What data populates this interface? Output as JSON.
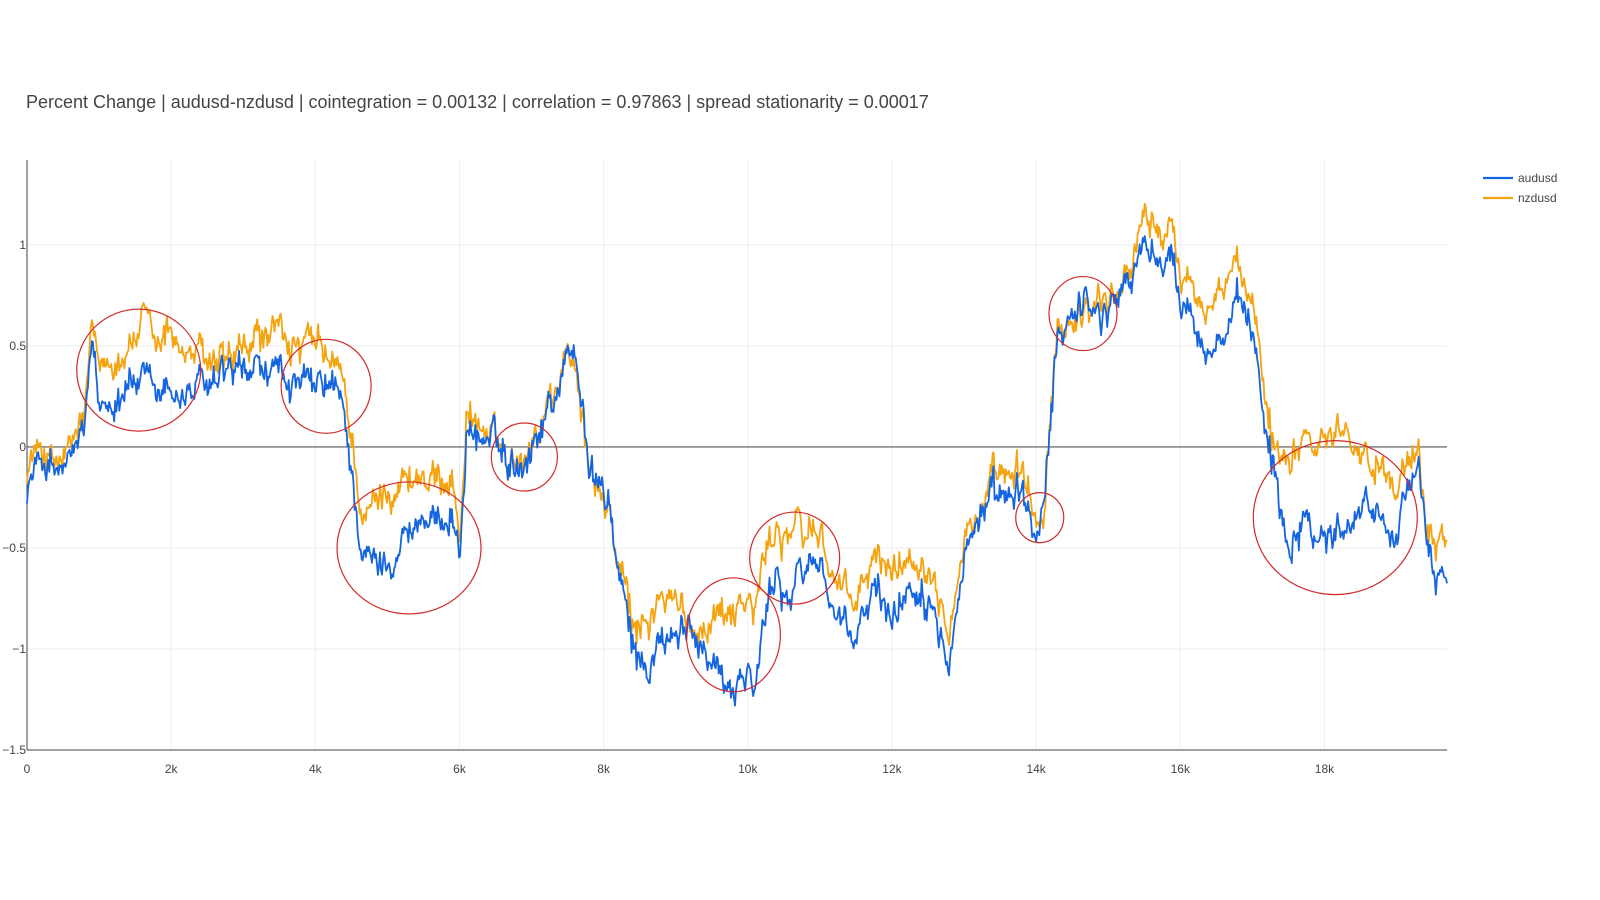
{
  "chart_data": {
    "type": "line",
    "title": "Percent Change | audusd-nzdusd | cointegration = 0.00132 | correlation = 0.97863 | spread stationarity = 0.00017",
    "xlabel": "",
    "ylabel": "",
    "xlim": [
      0,
      19700
    ],
    "ylim": [
      -1.5,
      1.4
    ],
    "grid": true,
    "legend_position": "top-right",
    "x_ticks": [
      {
        "value": 0,
        "label": "0"
      },
      {
        "value": 2000,
        "label": "2k"
      },
      {
        "value": 4000,
        "label": "4k"
      },
      {
        "value": 6000,
        "label": "6k"
      },
      {
        "value": 8000,
        "label": "8k"
      },
      {
        "value": 10000,
        "label": "10k"
      },
      {
        "value": 12000,
        "label": "12k"
      },
      {
        "value": 14000,
        "label": "14k"
      },
      {
        "value": 16000,
        "label": "16k"
      },
      {
        "value": 18000,
        "label": "18k"
      }
    ],
    "y_ticks": [
      {
        "value": 1,
        "label": "1"
      },
      {
        "value": 0.5,
        "label": "0.5"
      },
      {
        "value": 0,
        "label": "0"
      },
      {
        "value": -0.5,
        "label": "−0.5"
      },
      {
        "value": -1,
        "label": "−1"
      },
      {
        "value": -1.5,
        "label": "−1.5"
      }
    ],
    "series": [
      {
        "name": "audusd",
        "color": "#1565e0",
        "x": [
          0,
          200,
          400,
          600,
          800,
          900,
          1000,
          1200,
          1400,
          1600,
          1800,
          2000,
          2200,
          2400,
          2600,
          2800,
          3000,
          3200,
          3400,
          3600,
          3800,
          4000,
          4200,
          4400,
          4500,
          4600,
          4700,
          4900,
          5100,
          5300,
          5500,
          5700,
          5900,
          6000,
          6100,
          6300,
          6500,
          6700,
          6900,
          7100,
          7300,
          7500,
          7600,
          7700,
          7800,
          8000,
          8100,
          8200,
          8300,
          8400,
          8500,
          8600,
          8800,
          9000,
          9200,
          9400,
          9600,
          9800,
          10000,
          10100,
          10200,
          10300,
          10400,
          10600,
          10800,
          11000,
          11200,
          11400,
          11600,
          11800,
          12000,
          12200,
          12400,
          12600,
          12800,
          12900,
          13000,
          13200,
          13400,
          13600,
          13800,
          14000,
          14100,
          14200,
          14300,
          14500,
          14700,
          14900,
          15100,
          15300,
          15500,
          15700,
          15900,
          16100,
          16300,
          16500,
          16700,
          16900,
          17000,
          17100,
          17200,
          17300,
          17500,
          17700,
          17900,
          18100,
          18300,
          18500,
          18700,
          18900,
          19100,
          19300,
          19400,
          19500,
          19700
        ],
        "values": [
          -0.2,
          -0.05,
          -0.15,
          -0.1,
          0.1,
          0.45,
          0.15,
          0.25,
          0.35,
          0.3,
          0.2,
          0.3,
          0.25,
          0.3,
          0.25,
          0.35,
          0.3,
          0.4,
          0.3,
          0.35,
          0.3,
          0.25,
          0.3,
          0.15,
          -0.1,
          -0.4,
          -0.55,
          -0.6,
          -0.5,
          -0.4,
          -0.35,
          -0.4,
          -0.3,
          -0.55,
          0.1,
          0.05,
          0.0,
          -0.05,
          -0.05,
          0.1,
          0.25,
          0.45,
          0.5,
          0.25,
          -0.15,
          -0.2,
          -0.35,
          -0.6,
          -0.85,
          -1.0,
          -1.05,
          -1.1,
          -0.95,
          -1.0,
          -0.9,
          -0.95,
          -1.1,
          -1.15,
          -1.1,
          -1.25,
          -0.95,
          -0.75,
          -0.6,
          -0.75,
          -0.6,
          -0.55,
          -0.8,
          -1.0,
          -0.85,
          -0.7,
          -0.85,
          -0.7,
          -0.65,
          -0.75,
          -0.95,
          -0.75,
          -0.55,
          -0.3,
          -0.3,
          -0.3,
          -0.25,
          -0.45,
          -0.3,
          0.05,
          0.55,
          0.7,
          0.75,
          0.65,
          0.75,
          0.85,
          1.0,
          0.95,
          0.85,
          0.7,
          0.6,
          0.5,
          0.6,
          0.65,
          0.55,
          0.35,
          0.1,
          -0.1,
          -0.45,
          -0.3,
          -0.4,
          -0.45,
          -0.35,
          -0.25,
          -0.3,
          -0.35,
          -0.3,
          -0.2,
          -0.4,
          -0.6,
          -0.6
        ]
      },
      {
        "name": "nzdusd",
        "color": "#f5a30f",
        "x": [
          0,
          200,
          400,
          600,
          800,
          900,
          1000,
          1200,
          1400,
          1600,
          1800,
          2000,
          2200,
          2400,
          2600,
          2800,
          3000,
          3200,
          3400,
          3600,
          3800,
          4000,
          4200,
          4400,
          4500,
          4600,
          4700,
          4900,
          5100,
          5300,
          5500,
          5700,
          5900,
          6000,
          6100,
          6300,
          6500,
          6700,
          6900,
          7100,
          7300,
          7500,
          7600,
          7700,
          7800,
          8000,
          8100,
          8200,
          8300,
          8400,
          8500,
          8600,
          8800,
          9000,
          9200,
          9400,
          9600,
          9800,
          10000,
          10100,
          10200,
          10300,
          10400,
          10600,
          10800,
          11000,
          11200,
          11400,
          11600,
          11800,
          12000,
          12200,
          12400,
          12600,
          12800,
          12900,
          13000,
          13200,
          13400,
          13600,
          13800,
          14000,
          14100,
          14200,
          14300,
          14500,
          14700,
          14900,
          15100,
          15300,
          15500,
          15700,
          15900,
          16100,
          16300,
          16500,
          16700,
          16900,
          17000,
          17100,
          17200,
          17300,
          17500,
          17700,
          17900,
          18100,
          18300,
          18500,
          18700,
          18900,
          19100,
          19300,
          19400,
          19500,
          19700
        ],
        "values": [
          -0.1,
          0.0,
          -0.1,
          -0.05,
          0.15,
          0.55,
          0.35,
          0.45,
          0.5,
          0.6,
          0.45,
          0.6,
          0.45,
          0.45,
          0.35,
          0.4,
          0.4,
          0.55,
          0.5,
          0.55,
          0.45,
          0.5,
          0.4,
          0.3,
          0.05,
          -0.2,
          -0.35,
          -0.25,
          -0.15,
          -0.15,
          -0.15,
          -0.2,
          -0.1,
          -0.5,
          0.2,
          0.1,
          0.0,
          -0.05,
          0.0,
          0.1,
          0.3,
          0.45,
          0.45,
          0.2,
          -0.15,
          -0.25,
          -0.35,
          -0.6,
          -0.75,
          -0.9,
          -0.9,
          -0.85,
          -0.75,
          -0.8,
          -0.9,
          -0.85,
          -0.8,
          -0.75,
          -0.75,
          -0.85,
          -0.6,
          -0.5,
          -0.4,
          -0.4,
          -0.45,
          -0.4,
          -0.65,
          -0.8,
          -0.7,
          -0.55,
          -0.6,
          -0.55,
          -0.5,
          -0.6,
          -0.8,
          -0.65,
          -0.45,
          -0.3,
          -0.2,
          -0.2,
          -0.15,
          -0.35,
          -0.4,
          0.1,
          0.6,
          0.65,
          0.7,
          0.75,
          0.75,
          0.9,
          1.15,
          1.1,
          1.0,
          0.85,
          0.8,
          0.75,
          0.85,
          0.75,
          0.7,
          0.5,
          0.25,
          0.0,
          0.0,
          0.1,
          0.05,
          0.05,
          0.15,
          0.0,
          -0.1,
          -0.05,
          -0.15,
          -0.1,
          -0.4,
          -0.45,
          -0.4
        ]
      }
    ],
    "annotations": [
      {
        "type": "circle",
        "x": 1550,
        "y": 0.38,
        "label": ""
      },
      {
        "type": "circle",
        "x": 4150,
        "y": 0.3,
        "label": ""
      },
      {
        "type": "circle",
        "x": 5300,
        "y": -0.5,
        "label": ""
      },
      {
        "type": "circle",
        "x": 6900,
        "y": -0.05,
        "label": ""
      },
      {
        "type": "circle",
        "x": 9800,
        "y": -0.93,
        "label": ""
      },
      {
        "type": "circle",
        "x": 10650,
        "y": -0.55,
        "label": ""
      },
      {
        "type": "circle",
        "x": 14050,
        "y": -0.35,
        "label": ""
      },
      {
        "type": "circle",
        "x": 14650,
        "y": 0.66,
        "label": ""
      },
      {
        "type": "circle",
        "x": 18150,
        "y": -0.35,
        "label": ""
      }
    ]
  }
}
